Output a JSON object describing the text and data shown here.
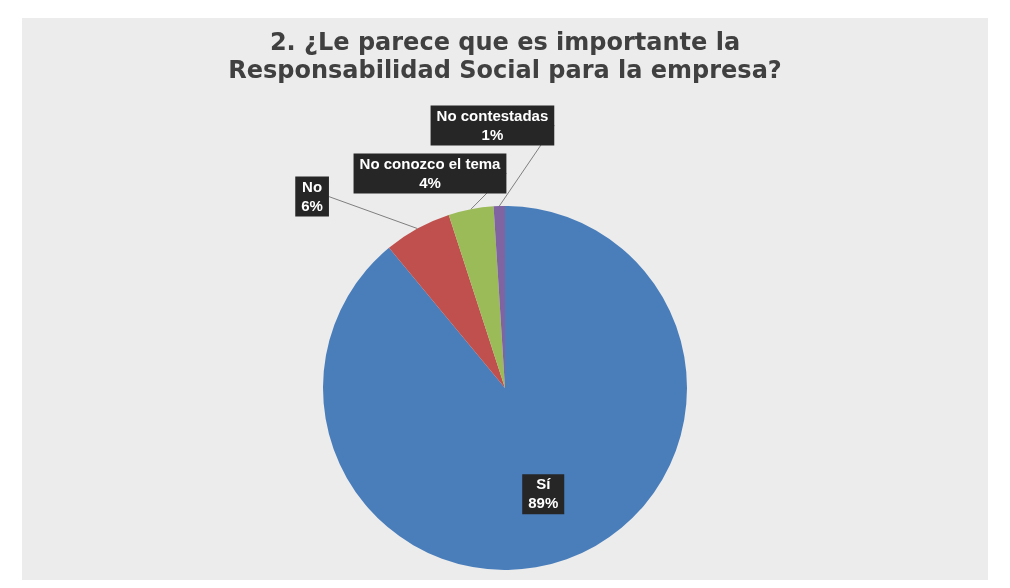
{
  "chart_data": {
    "type": "pie",
    "title": "2. ¿Le parece que es importante la Responsabilidad Social para la empresa?",
    "categories": [
      "Sí",
      "No",
      "No conozco el tema",
      "No contestadas"
    ],
    "values": [
      89,
      6,
      4,
      1
    ],
    "colors": [
      "#4a7ebb",
      "#c0504d",
      "#9bbb59",
      "#8064a2"
    ],
    "value_labels": [
      "89%",
      "6%",
      "4%",
      "1%"
    ],
    "legend": false
  }
}
